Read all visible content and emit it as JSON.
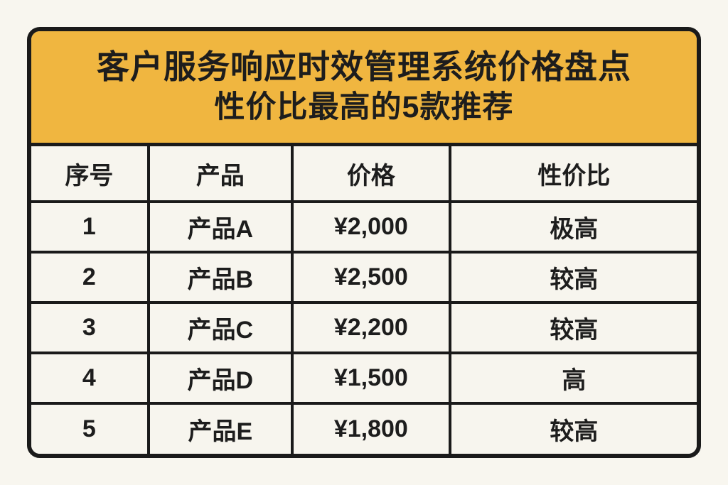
{
  "chart_data": {
    "type": "table",
    "title": "客户服务响应时效管理系统价格盘点",
    "subtitle": "性价比最高的5款推荐",
    "columns": [
      "序号",
      "产品",
      "价格",
      "性价比"
    ],
    "rows": [
      [
        "1",
        "产品A",
        "¥2,000",
        "极高"
      ],
      [
        "2",
        "产品B",
        "¥2,500",
        "较高"
      ],
      [
        "3",
        "产品C",
        "¥2,200",
        "较高"
      ],
      [
        "4",
        "产品D",
        "¥1,500",
        "高"
      ],
      [
        "5",
        "产品E",
        "¥1,800",
        "较高"
      ]
    ],
    "layout": {
      "legend": "none",
      "grid": "on"
    }
  },
  "colors": {
    "banner_bg": "#F0B640",
    "border": "#1A1A1A",
    "page_bg": "#F8F6EF",
    "cell_bg": "#F7F5EE",
    "text": "#1D1D1D"
  }
}
